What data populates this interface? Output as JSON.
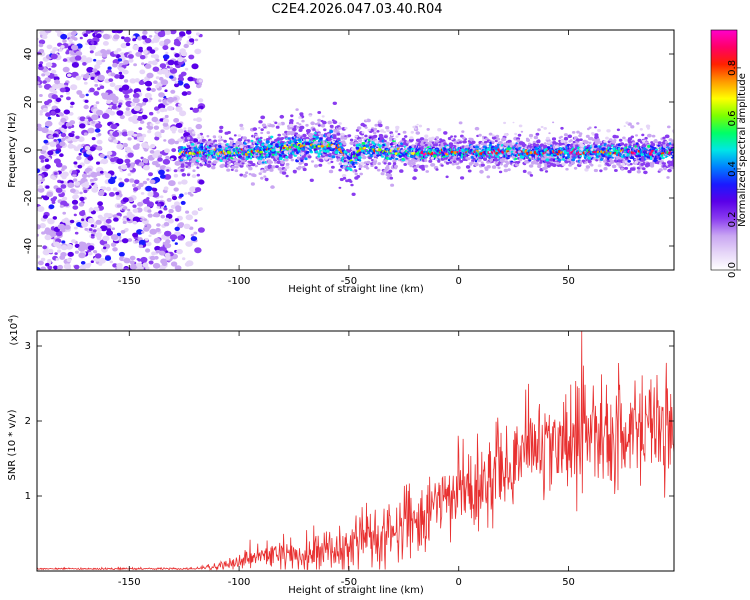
{
  "title": "C2E4.2026.047.03.40.R04",
  "colors": {
    "background": "#ffffff",
    "axis": "#000000",
    "snr_line": "#e83030",
    "colormap": [
      "#ffffff",
      "#e6d6f8",
      "#c9a6f2",
      "#8a3cf0",
      "#5a00e8",
      "#1a1aff",
      "#0080ff",
      "#00e6e6",
      "#00ff66",
      "#7dff00",
      "#ffff00",
      "#ff9900",
      "#ff2200",
      "#ff0066",
      "#ff00cc"
    ]
  },
  "chart_data": [
    {
      "type": "heatmap",
      "name": "spectrogram",
      "xlabel": "Height of straight line (km)",
      "ylabel": "Frequency (Hz)",
      "xlim": [
        -192,
        98
      ],
      "ylim": [
        -50,
        50
      ],
      "xticks": [
        -150,
        -100,
        -50,
        0,
        50
      ],
      "xtick_labels": [
        "-150",
        "-100",
        "-50",
        "0",
        "50"
      ],
      "yticks": [
        -40,
        -20,
        0,
        20,
        40
      ],
      "ytick_labels": [
        "-40",
        "-20",
        "0",
        "20",
        "40"
      ],
      "noise_region_x": [
        -192,
        -117
      ],
      "signal": {
        "x_start": -127,
        "x_end": 98,
        "center_freq": -1,
        "band_halfwidth": 3,
        "bump_x": [
          -95,
          -30
        ],
        "bump_offset": 3,
        "dip_x": [
          -55,
          -45
        ],
        "dip_offset": -6
      },
      "colorbar": {
        "label": "Normalized spectral amplitude",
        "range": [
          0.0,
          0.95
        ],
        "ticks": [
          0.0,
          0.2,
          0.4,
          0.6,
          0.8
        ],
        "tick_labels": [
          "0.0",
          "0.2",
          "0.4",
          "0.6",
          "0.8"
        ]
      }
    },
    {
      "type": "line",
      "name": "snr",
      "xlabel": "Height of straight line (km)",
      "ylabel": "SNR (10 * v/v)",
      "y_multiplier_label": "(x10",
      "y_multiplier_exp": "4",
      "y_multiplier_close": ")",
      "xlim": [
        -192,
        98
      ],
      "ylim": [
        0,
        3.2
      ],
      "xticks": [
        -150,
        -100,
        -50,
        0,
        50
      ],
      "xtick_labels": [
        "-150",
        "-100",
        "-50",
        "0",
        "50"
      ],
      "yticks": [
        1,
        2,
        3
      ],
      "ytick_labels": [
        "1",
        "2",
        "3"
      ],
      "trend_x": [
        -192,
        -120,
        -110,
        -100,
        -90,
        -80,
        -70,
        -60,
        -50,
        -40,
        -30,
        -20,
        -10,
        0,
        10,
        20,
        30,
        40,
        50,
        60,
        70,
        80,
        90,
        98
      ],
      "trend_y": [
        0.03,
        0.03,
        0.06,
        0.12,
        0.2,
        0.22,
        0.2,
        0.3,
        0.4,
        0.45,
        0.5,
        0.65,
        0.85,
        1.0,
        1.15,
        1.4,
        1.55,
        1.65,
        1.75,
        1.8,
        1.85,
        1.8,
        1.85,
        1.85
      ],
      "noise_x": [
        -192,
        -120,
        -100,
        -80,
        -60,
        -40,
        -20,
        0,
        20,
        40,
        60,
        80,
        98
      ],
      "noise_amp": [
        0.005,
        0.008,
        0.06,
        0.1,
        0.15,
        0.18,
        0.22,
        0.28,
        0.32,
        0.36,
        0.4,
        0.38,
        0.38
      ],
      "peak_x": 56,
      "peak_y": 3.2
    }
  ]
}
